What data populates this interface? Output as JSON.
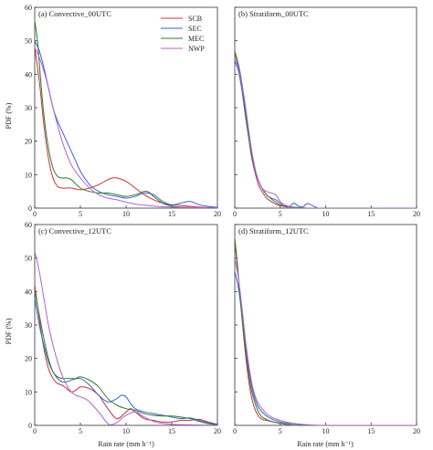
{
  "figure": {
    "ylabel": "PDF (%)",
    "xlabel": "Rain rate (mm h⁻¹)"
  },
  "legend": {
    "items": [
      {
        "label": "SCB",
        "color": "#c8323c"
      },
      {
        "label": "SEC",
        "color": "#3c5fc8"
      },
      {
        "label": "MEC",
        "color": "#2e7d32"
      },
      {
        "label": "NWP",
        "color": "#b45fd2"
      }
    ]
  },
  "chart_data": [
    {
      "type": "line",
      "title": "(a) Convective_00UTC",
      "xlim": [
        0,
        20
      ],
      "ylim": [
        0,
        60
      ],
      "xticks": [
        "0",
        "5",
        "10",
        "15",
        "20"
      ],
      "yticks": [
        "0",
        "10",
        "20",
        "30",
        "40",
        "50",
        "60"
      ],
      "series": [
        {
          "name": "SCB",
          "x": [
            0,
            0.5,
            1,
            1.5,
            2,
            2.5,
            3,
            3.5,
            4,
            5,
            6,
            7,
            8,
            8.5,
            9,
            10,
            11,
            12,
            13,
            14,
            15,
            16,
            18,
            20
          ],
          "y": [
            48,
            38,
            25,
            15,
            9,
            6.5,
            6,
            6,
            6,
            5.5,
            6,
            7,
            8.5,
            9,
            9,
            8,
            6,
            4,
            2.5,
            1.5,
            1,
            0.8,
            0.3,
            0.1
          ]
        },
        {
          "name": "SEC",
          "x": [
            0,
            0.5,
            1,
            1.5,
            2,
            2.5,
            3,
            3.5,
            4,
            4.5,
            5,
            6,
            7,
            8,
            9,
            10,
            11,
            12,
            13,
            14,
            15,
            16,
            17,
            18,
            19,
            20
          ],
          "y": [
            50,
            47,
            42,
            36,
            30,
            26,
            23,
            20,
            17,
            14,
            11,
            7,
            5,
            4,
            3.5,
            3,
            3.5,
            4.5,
            4,
            2,
            1,
            1.5,
            2,
            1,
            0.5,
            0.2
          ]
        },
        {
          "name": "MEC",
          "x": [
            0,
            0.3,
            0.6,
            1,
            1.5,
            2,
            2.5,
            3,
            3.5,
            4,
            5,
            6,
            7,
            8,
            9,
            10,
            11,
            12,
            12.5,
            13,
            14,
            15,
            16,
            18,
            20
          ],
          "y": [
            56,
            50,
            40,
            28,
            18,
            12,
            9.5,
            9,
            9,
            8.5,
            6,
            5,
            4.5,
            4.5,
            4,
            3.5,
            4,
            5,
            4.8,
            3.5,
            1.5,
            0.6,
            0.3,
            0.1,
            0
          ]
        },
        {
          "name": "NWP",
          "x": [
            0,
            0.5,
            1,
            1.5,
            2,
            3,
            4,
            5,
            6,
            7,
            8,
            9,
            10,
            11,
            12,
            13,
            14,
            15,
            16,
            18,
            20
          ],
          "y": [
            48,
            45,
            41,
            36,
            30,
            20,
            13,
            9,
            6,
            4,
            3,
            2.5,
            1.8,
            1.2,
            0.9,
            0.6,
            0.4,
            0.3,
            0.2,
            0.1,
            0
          ]
        }
      ]
    },
    {
      "type": "line",
      "title": "(b) Stratiform_00UTC",
      "xlim": [
        0,
        20
      ],
      "ylim": [
        0,
        60
      ],
      "xticks": [
        "0",
        "5",
        "10",
        "15",
        "20"
      ],
      "yticks": [],
      "series": [
        {
          "name": "SCB",
          "x": [
            0,
            0.3,
            0.6,
            1,
            1.4,
            1.8,
            2.2,
            2.6,
            3,
            3.5,
            4,
            4.5,
            5,
            6,
            8,
            10,
            20
          ],
          "y": [
            47,
            44,
            40,
            33,
            24,
            16,
            11,
            7,
            5,
            3,
            2,
            1.2,
            0.7,
            0.3,
            0,
            0,
            0
          ]
        },
        {
          "name": "SEC",
          "x": [
            0,
            0.4,
            0.8,
            1.2,
            1.6,
            2,
            2.5,
            3,
            3.5,
            4,
            4.5,
            5,
            5.5,
            6,
            6.5,
            7,
            7.5,
            8,
            8.5,
            9,
            10,
            20
          ],
          "y": [
            44,
            41,
            35,
            27,
            20,
            14,
            9,
            6,
            4,
            3,
            2.5,
            1.5,
            0.5,
            0.4,
            1.5,
            0.6,
            0.4,
            1.4,
            0.8,
            0.2,
            0,
            0
          ]
        },
        {
          "name": "MEC",
          "x": [
            0,
            0.4,
            0.8,
            1.2,
            1.6,
            2,
            2.5,
            3,
            3.5,
            4,
            4.5,
            5,
            6,
            8,
            10,
            20
          ],
          "y": [
            46,
            43,
            37,
            28,
            20,
            14,
            9,
            6,
            4,
            2.8,
            1.8,
            1,
            0.4,
            0,
            0,
            0
          ]
        },
        {
          "name": "NWP",
          "x": [
            0,
            0.4,
            0.8,
            1.2,
            1.6,
            2,
            2.5,
            3,
            3.5,
            4,
            4.5,
            5,
            5.5,
            6,
            7,
            20
          ],
          "y": [
            45,
            42,
            37,
            30,
            22,
            15,
            9,
            6,
            5,
            4.5,
            4,
            2,
            1,
            0.5,
            0,
            0
          ]
        }
      ]
    },
    {
      "type": "line",
      "title": "(c) Convective_12UTC",
      "xlim": [
        0,
        20
      ],
      "ylim": [
        0,
        60
      ],
      "xticks": [
        "0",
        "5",
        "10",
        "15",
        "20"
      ],
      "yticks": [
        "0",
        "10",
        "20",
        "30",
        "40",
        "50",
        "60"
      ],
      "series": [
        {
          "name": "SCB",
          "x": [
            0,
            0.5,
            1,
            1.5,
            2,
            2.5,
            3,
            3.5,
            4,
            4.5,
            5,
            6,
            7,
            7.5,
            8,
            9,
            10,
            10.5,
            11,
            12,
            13,
            14,
            15,
            16,
            17,
            18,
            19,
            20
          ],
          "y": [
            42,
            32,
            23,
            17,
            14,
            12.5,
            12,
            11,
            10,
            10.5,
            11.5,
            11,
            9,
            7,
            5,
            2,
            4,
            5,
            4,
            2,
            1.5,
            1,
            1,
            1.5,
            1.5,
            1.8,
            1,
            0.3
          ]
        },
        {
          "name": "SEC",
          "x": [
            0,
            0.5,
            1,
            1.5,
            2,
            2.5,
            3,
            3.5,
            4,
            5,
            6,
            7,
            8,
            9,
            9.5,
            10,
            10.5,
            11,
            12,
            13,
            14,
            15,
            16,
            17,
            18,
            19,
            20
          ],
          "y": [
            38,
            30,
            24,
            19,
            16,
            14,
            13,
            13,
            13.5,
            14,
            12,
            9,
            7,
            8,
            9,
            8.5,
            6.5,
            5,
            4,
            3.5,
            3,
            2.5,
            2,
            2.2,
            1.5,
            0.8,
            0.2
          ]
        },
        {
          "name": "MEC",
          "x": [
            0,
            0.5,
            1,
            1.5,
            2,
            2.5,
            3,
            3.5,
            4,
            4.5,
            5,
            6,
            7,
            8,
            9,
            10,
            11,
            12,
            13,
            14,
            15,
            16,
            17,
            18,
            19,
            20
          ],
          "y": [
            40,
            33,
            26,
            20,
            16,
            14.5,
            14,
            14,
            14,
            14,
            14.5,
            13.5,
            11.5,
            8,
            6,
            5,
            4.5,
            3.5,
            3,
            2.8,
            2.8,
            2.5,
            2,
            1.2,
            0.5,
            0.1
          ]
        },
        {
          "name": "NWP",
          "x": [
            0,
            0.5,
            1,
            1.5,
            2,
            2.5,
            3,
            3.5,
            4,
            4.5,
            5,
            5.5,
            6,
            7,
            8,
            8.5,
            9,
            10,
            11,
            12,
            13,
            14,
            15,
            16,
            18,
            20
          ],
          "y": [
            52,
            46,
            38,
            30,
            24,
            19,
            15,
            12,
            10,
            9,
            8.5,
            8,
            7,
            4,
            0.5,
            0.3,
            0.8,
            3,
            4,
            2.5,
            1.2,
            0.6,
            0.3,
            0.2,
            0.1,
            0
          ]
        }
      ]
    },
    {
      "type": "line",
      "title": "(d) Stratiform_12UTC",
      "xlim": [
        0,
        20
      ],
      "ylim": [
        0,
        60
      ],
      "xticks": [
        "0",
        "5",
        "10",
        "15",
        "20"
      ],
      "yticks": [],
      "series": [
        {
          "name": "SCB",
          "x": [
            0,
            0.3,
            0.6,
            1,
            1.4,
            1.8,
            2.2,
            2.6,
            3,
            3.5,
            4,
            5,
            6,
            8,
            20
          ],
          "y": [
            56,
            48,
            38,
            26,
            16,
            9,
            5,
            2.8,
            1.8,
            1.5,
            1.2,
            0.6,
            0.2,
            0,
            0
          ]
        },
        {
          "name": "SEC",
          "x": [
            0,
            0.4,
            0.8,
            1.2,
            1.6,
            2,
            2.5,
            3,
            3.5,
            4,
            4.5,
            5,
            6,
            7,
            8,
            10,
            20
          ],
          "y": [
            46,
            41,
            33,
            24,
            16,
            10,
            6,
            4,
            2.8,
            2,
            1.5,
            1,
            0.6,
            0.3,
            0.1,
            0,
            0
          ]
        },
        {
          "name": "MEC",
          "x": [
            0,
            0.3,
            0.6,
            1,
            1.4,
            1.8,
            2.2,
            2.6,
            3,
            3.5,
            4,
            5,
            6,
            8,
            20
          ],
          "y": [
            55,
            47,
            38,
            27,
            18,
            11,
            7,
            4,
            2.5,
            1.8,
            1.2,
            0.6,
            0.2,
            0,
            0
          ]
        },
        {
          "name": "NWP",
          "x": [
            0,
            0.4,
            0.8,
            1.2,
            1.6,
            2,
            2.5,
            3,
            3.5,
            4,
            4.5,
            5,
            6,
            7,
            8,
            10,
            20
          ],
          "y": [
            50,
            44,
            35,
            25,
            17,
            11,
            7,
            5,
            3.5,
            2.5,
            2,
            1.5,
            0.8,
            0.4,
            0.2,
            0,
            0
          ]
        }
      ]
    }
  ]
}
